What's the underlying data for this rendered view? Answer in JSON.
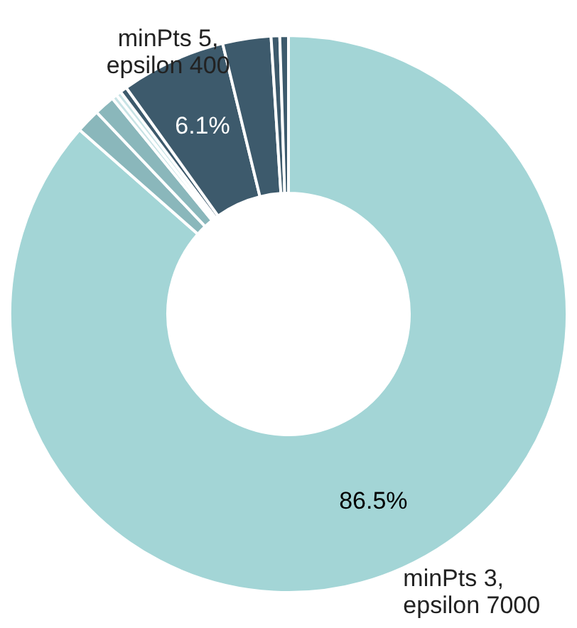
{
  "chart_data": {
    "type": "donut",
    "categories": [
      "minPts 3, epsilon 7000",
      null,
      null,
      null,
      null,
      null,
      "minPts 5, epsilon 400",
      null,
      null,
      null
    ],
    "values": [
      86.5,
      1.4,
      1.2,
      0.3,
      0.3,
      0.4,
      6.1,
      2.8,
      0.5,
      0.5
    ],
    "colors": [
      "#a3d5d6",
      "#8ab7bb",
      "#8ab7bb",
      "#c8e3e5",
      "#c8e3e5",
      "#3d5a6c",
      "#3d5a6c",
      "#3d5a6c",
      "#3d5a6c",
      "#3d5a6c"
    ],
    "value_labels": [
      "86.5%",
      null,
      null,
      null,
      null,
      null,
      "6.1%",
      null,
      null,
      null
    ]
  }
}
